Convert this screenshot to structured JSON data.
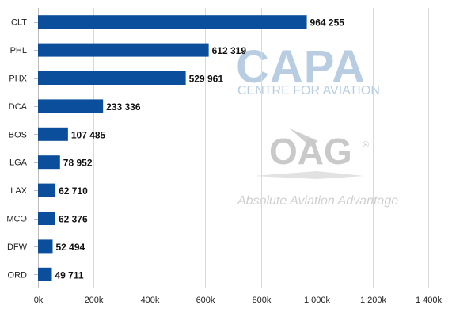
{
  "watermarks": {
    "capa": "CAPA",
    "capa_sub": "CENTRE FOR AVIATION",
    "oag": "OAG",
    "oag_reg": "®",
    "oag_sub": "Absolute Aviation Advantage"
  },
  "chart_data": {
    "type": "bar",
    "orientation": "horizontal",
    "categories": [
      "CLT",
      "PHL",
      "PHX",
      "DCA",
      "BOS",
      "LGA",
      "LAX",
      "MCO",
      "DFW",
      "ORD"
    ],
    "values": [
      964255,
      612319,
      529961,
      233336,
      107485,
      78952,
      62710,
      62376,
      52494,
      49711
    ],
    "value_labels": [
      "964 255",
      "612 319",
      "529 961",
      "233 336",
      "107 485",
      "78 952",
      "62 710",
      "62 376",
      "52 494",
      "49 711"
    ],
    "xlim": [
      0,
      1400000
    ],
    "x_ticks": [
      0,
      200000,
      400000,
      600000,
      800000,
      1000000,
      1200000,
      1400000
    ],
    "x_tick_labels": [
      "0k",
      "200k",
      "400k",
      "600k",
      "800k",
      "1 000k",
      "1 200k",
      "1 400k"
    ],
    "grid": true,
    "bar_color": "#0b4f9c",
    "title": "",
    "xlabel": "",
    "ylabel": ""
  }
}
